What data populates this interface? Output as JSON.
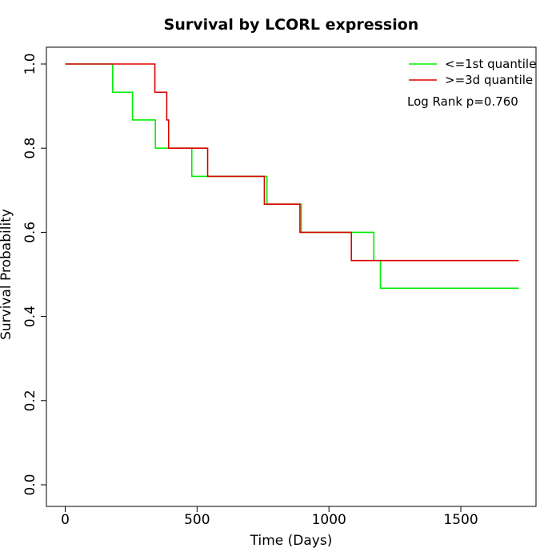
{
  "chart_data": {
    "type": "line",
    "title": "Survival by LCORL expression",
    "xlabel": "Time (Days)",
    "ylabel": "Survival Probability",
    "xlim": [
      0,
      1800
    ],
    "ylim": [
      0,
      1.0
    ],
    "x_ticks": [
      0,
      500,
      1000,
      1500
    ],
    "x_tick_labels": [
      "0",
      "500",
      "1000",
      "1500"
    ],
    "y_ticks": [
      0.0,
      0.2,
      0.4,
      0.6,
      0.8,
      1.0
    ],
    "y_tick_labels": [
      "0.0",
      "0.2",
      "0.4",
      "0.6",
      "0.8",
      "1.0"
    ],
    "grid": false,
    "legend_position": "top-right",
    "annotation": "Log Rank p=0.760",
    "series": [
      {
        "name": "<=1st quantile",
        "color": "#00ee00",
        "step_x": [
          0,
          180,
          255,
          342,
          480,
          765,
          895,
          1170,
          1195,
          1720
        ],
        "step_y": [
          1.0,
          0.933,
          0.867,
          0.8,
          0.733,
          0.667,
          0.6,
          0.533,
          0.467,
          0.467
        ]
      },
      {
        "name": ">=3d quantile",
        "color": "#dd0000",
        "step_x": [
          0,
          340,
          385,
          392,
          540,
          755,
          890,
          1085,
          1720
        ],
        "step_y": [
          1.0,
          0.933,
          0.867,
          0.8,
          0.733,
          0.667,
          0.6,
          0.533,
          0.533
        ]
      }
    ]
  }
}
